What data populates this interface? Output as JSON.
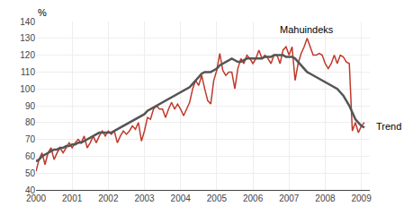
{
  "chart_data": {
    "type": "line",
    "y_label": "%",
    "x": [
      2000,
      2000.083333,
      2000.166667,
      2000.25,
      2000.333333,
      2000.416667,
      2000.5,
      2000.583333,
      2000.666667,
      2000.75,
      2000.833333,
      2000.916667,
      2001,
      2001.083333,
      2001.166667,
      2001.25,
      2001.333333,
      2001.416667,
      2001.5,
      2001.583333,
      2001.666667,
      2001.75,
      2001.833333,
      2001.916667,
      2002,
      2002.083333,
      2002.166667,
      2002.25,
      2002.333333,
      2002.416667,
      2002.5,
      2002.583333,
      2002.666667,
      2002.75,
      2002.833333,
      2002.916667,
      2003,
      2003.083333,
      2003.166667,
      2003.25,
      2003.333333,
      2003.416667,
      2003.5,
      2003.583333,
      2003.666667,
      2003.75,
      2003.833333,
      2003.916667,
      2004,
      2004.083333,
      2004.166667,
      2004.25,
      2004.333333,
      2004.416667,
      2004.5,
      2004.583333,
      2004.666667,
      2004.75,
      2004.833333,
      2004.916667,
      2005,
      2005.083333,
      2005.166667,
      2005.25,
      2005.333333,
      2005.416667,
      2005.5,
      2005.583333,
      2005.666667,
      2005.75,
      2005.833333,
      2005.916667,
      2006,
      2006.083333,
      2006.166667,
      2006.25,
      2006.333333,
      2006.416667,
      2006.5,
      2006.583333,
      2006.666667,
      2006.75,
      2006.833333,
      2006.916667,
      2007,
      2007.083333,
      2007.166667,
      2007.25,
      2007.333333,
      2007.416667,
      2007.5,
      2007.583333,
      2007.666667,
      2007.75,
      2007.833333,
      2007.916667,
      2008,
      2008.083333,
      2008.166667,
      2008.25,
      2008.333333,
      2008.416667,
      2008.5,
      2008.583333,
      2008.666667,
      2008.75,
      2008.833333,
      2008.916667,
      2009,
      2009.083333
    ],
    "series": [
      {
        "name": "Mahuindeks",
        "color": "#c0392b",
        "values": [
          51,
          58,
          62,
          55,
          62,
          65,
          58,
          62,
          65,
          62,
          65,
          68,
          65,
          68,
          70,
          68,
          72,
          65,
          68,
          72,
          68,
          72,
          75,
          72,
          75,
          73,
          75,
          68,
          72,
          75,
          73,
          75,
          78,
          76,
          80,
          69,
          75,
          83,
          82,
          88,
          90,
          88,
          88,
          83,
          88,
          92,
          88,
          91,
          88,
          84,
          88,
          92,
          100,
          105,
          102,
          108,
          100,
          93,
          91,
          105,
          111,
          121,
          111,
          108,
          110,
          110,
          100,
          112,
          118,
          115,
          120,
          118,
          115,
          118,
          123,
          118,
          120,
          118,
          115,
          120,
          120,
          115,
          123,
          125,
          120,
          125,
          105,
          115,
          121,
          125,
          130,
          125,
          120,
          120,
          121,
          120,
          115,
          112,
          115,
          120,
          115,
          120,
          119,
          116,
          115,
          75,
          80,
          74,
          78,
          80
        ]
      },
      {
        "name": "Trend",
        "color": "#555555",
        "values": [
          57,
          58,
          60,
          61,
          62,
          63,
          64,
          64,
          65,
          65,
          66,
          66,
          67,
          67,
          68,
          68,
          69,
          70,
          71,
          72,
          73,
          74,
          74,
          74,
          74,
          74,
          75,
          76,
          77,
          78,
          79,
          80,
          81,
          82,
          83,
          84,
          85,
          87,
          88,
          89,
          90,
          91,
          92,
          93,
          94,
          95,
          96,
          97,
          98,
          99,
          100,
          101,
          103,
          105,
          107,
          109,
          110,
          110,
          110,
          111,
          112,
          114,
          115,
          116,
          117,
          118,
          117,
          116,
          116,
          117,
          118,
          118,
          118,
          118,
          118,
          118,
          119,
          119,
          119,
          120,
          120,
          120,
          120,
          119,
          119,
          119,
          118,
          116,
          114,
          112,
          110,
          109,
          108,
          107,
          106,
          105,
          104,
          103,
          102,
          101,
          100,
          98,
          96,
          93,
          90,
          86,
          82,
          80,
          78,
          77
        ]
      }
    ],
    "annotations": [
      {
        "text": "Mahuindeks",
        "x": 2006.7,
        "y": 131
      },
      {
        "text": "Trend",
        "x": 2009.35,
        "y": 78
      }
    ],
    "xlim": [
      2000,
      2009.233333
    ],
    "xticks": [
      2000,
      2001,
      2002,
      2003,
      2004,
      2005,
      2006,
      2007,
      2008,
      2009
    ],
    "ylim": [
      40,
      140
    ],
    "yticks": [
      40,
      50,
      60,
      70,
      80,
      90,
      100,
      110,
      120,
      130,
      140
    ],
    "grid": true
  }
}
